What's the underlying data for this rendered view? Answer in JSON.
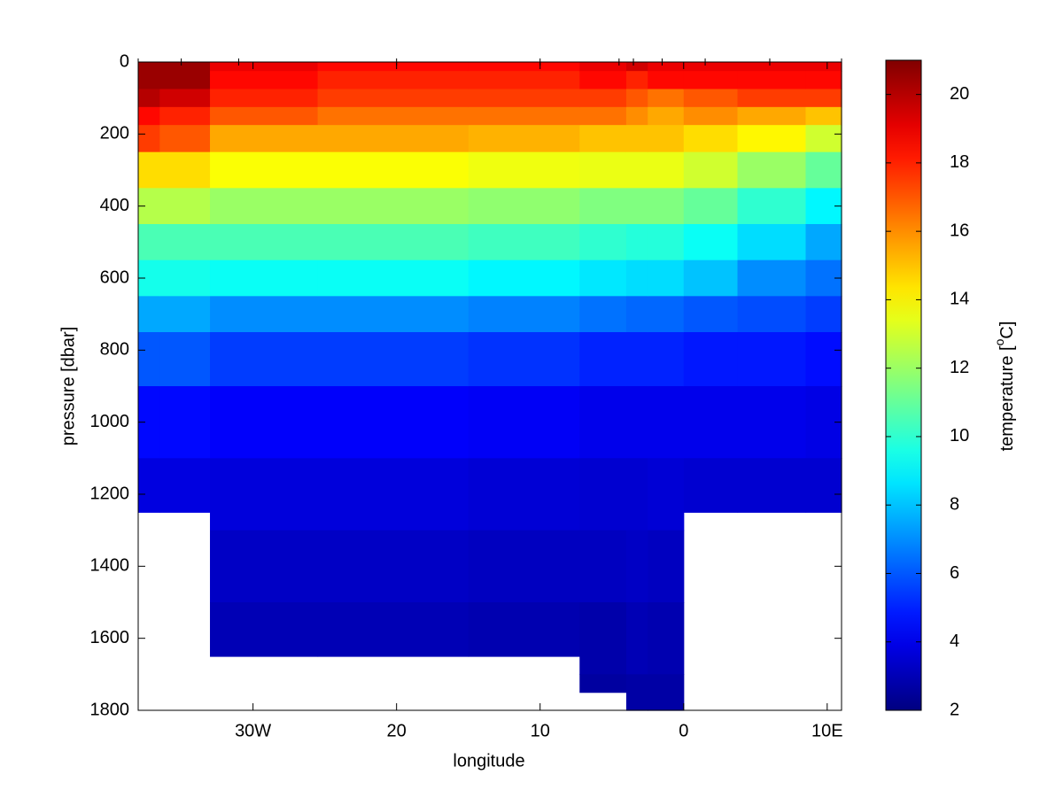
{
  "chart_data": {
    "type": "contour",
    "xlabel": "longitude",
    "ylabel": "pressure [dbar]",
    "colorbar_label": [
      "temperature [",
      "o",
      "C]"
    ],
    "colormap": "jet",
    "xlim": [
      -38,
      11
    ],
    "xticks": [
      {
        "value": -30,
        "label": "30W"
      },
      {
        "value": -20,
        "label": "20"
      },
      {
        "value": -10,
        "label": "10"
      },
      0,
      {
        "value": 10,
        "label": "10E"
      }
    ],
    "ylim": [
      0,
      1800
    ],
    "y_reversed": true,
    "yticks": [
      0,
      200,
      400,
      600,
      800,
      1000,
      1200,
      1400,
      1600,
      1800
    ],
    "clim": [
      2,
      21
    ],
    "cticks": [
      2,
      4,
      6,
      8,
      10,
      12,
      14,
      16,
      18,
      20
    ],
    "x": [
      -38,
      -35,
      -31,
      -20,
      -10,
      -4.5,
      -3.5,
      -1.5,
      1.5,
      6,
      11
    ],
    "depths": [
      0,
      50,
      100,
      150,
      200,
      300,
      400,
      500,
      600,
      700,
      800,
      1000,
      1200,
      1400,
      1600,
      1800
    ],
    "bottom": [
      1250,
      1250,
      1650,
      1650,
      1650,
      1750,
      1800,
      1800,
      1250,
      1250,
      1250
    ],
    "values": [
      [
        20.5,
        20.5,
        20,
        18.5,
        17.5,
        14.5,
        12.5,
        10.5,
        9.5,
        7.5,
        6,
        4.5,
        3.8,
        null,
        null,
        null
      ],
      [
        20.5,
        20.5,
        19.5,
        18,
        17,
        14.5,
        12.5,
        10.5,
        9.5,
        7.5,
        6,
        4.5,
        3.8,
        null,
        null,
        null
      ],
      [
        19,
        18.5,
        18,
        17,
        15.5,
        13.8,
        12,
        10.5,
        9.3,
        7,
        5.5,
        4.3,
        3.7,
        3.3,
        3.0,
        null
      ],
      [
        18.5,
        18,
        17.5,
        16.5,
        15.5,
        13.8,
        12,
        10.5,
        9.3,
        7,
        5.5,
        4.3,
        3.7,
        3.3,
        3.0,
        null
      ],
      [
        18.5,
        18,
        17.5,
        16.5,
        15.3,
        13.6,
        11.8,
        10.3,
        9,
        6.8,
        5.3,
        4.2,
        3.6,
        3.2,
        2.9,
        null
      ],
      [
        19,
        18.5,
        17.5,
        16.5,
        15,
        13.5,
        11.5,
        10,
        8.7,
        6.5,
        5,
        4,
        3.5,
        3.2,
        2.8,
        2.6
      ],
      [
        19.5,
        18,
        17,
        16,
        15,
        13.5,
        11.5,
        9.8,
        8.5,
        6.3,
        5,
        4,
        3.5,
        3.3,
        3,
        2.7
      ],
      [
        19,
        18.5,
        16.5,
        15.5,
        15,
        13.5,
        11.5,
        9.8,
        8.5,
        6.3,
        5,
        4,
        3.6,
        3.2,
        2.9,
        2.7
      ],
      [
        19,
        18.5,
        17,
        16,
        14.5,
        13,
        11,
        9.3,
        8,
        6,
        4.8,
        4,
        3.5,
        null,
        null,
        null
      ],
      [
        19,
        18.5,
        17.5,
        15.5,
        14,
        12,
        10,
        8.5,
        7,
        5.8,
        4.8,
        4,
        3.5,
        null,
        null,
        null
      ],
      [
        19,
        18.5,
        17.5,
        15,
        13,
        11,
        9,
        7.5,
        6.5,
        5.5,
        4.6,
        3.9,
        3.5,
        null,
        null,
        null
      ]
    ]
  }
}
